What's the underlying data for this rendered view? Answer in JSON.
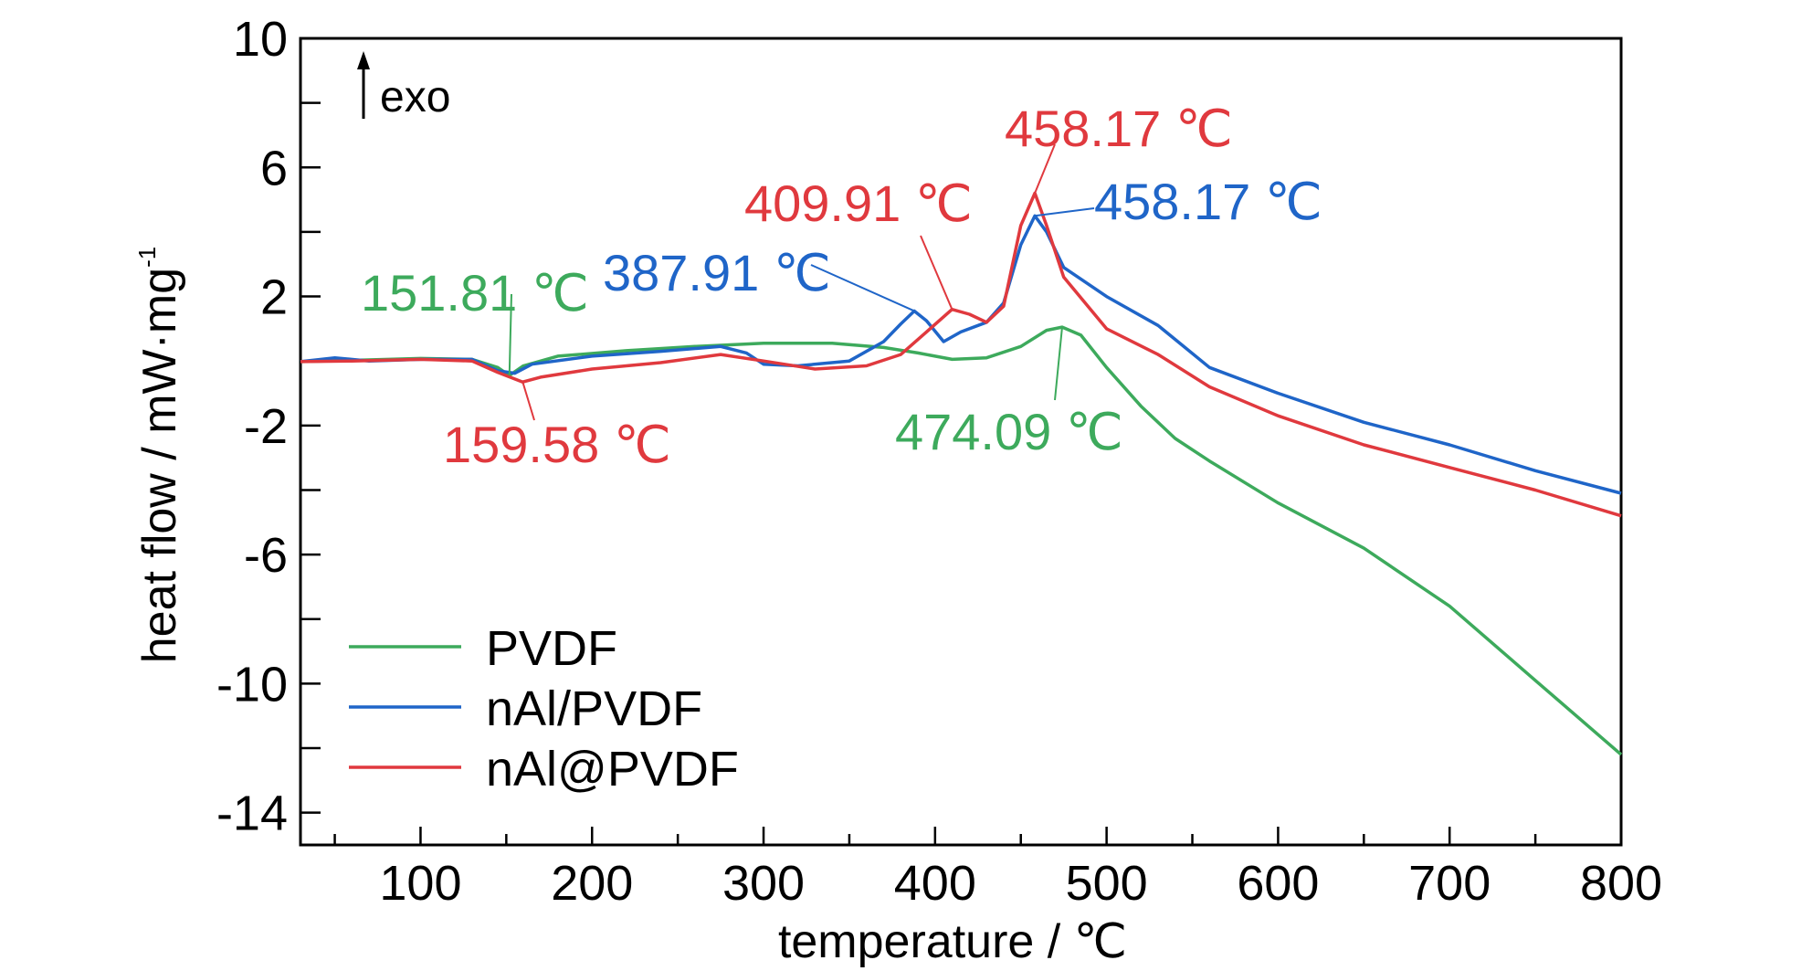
{
  "chart_data": {
    "type": "line",
    "xlabel": "temperature / ℃",
    "ylabel": "heat flow / mW·mg",
    "ylabel_sup": "-1",
    "xlim": [
      30,
      800
    ],
    "ylim": [
      -15,
      10
    ],
    "xticks": [
      100,
      200,
      300,
      400,
      500,
      600,
      700,
      800
    ],
    "yticks": [
      10,
      6,
      2,
      -2,
      -6,
      -10,
      -14
    ],
    "ytick_labels": [
      "10",
      "6",
      "2",
      "-2",
      "-6",
      "-10",
      "-14"
    ],
    "grid": false,
    "legend_position": "bottom-left",
    "exo_label": "exo",
    "series": [
      {
        "name": "PVDF",
        "color": "#3daa5c",
        "points": [
          [
            30,
            -0.02
          ],
          [
            60,
            0.02
          ],
          [
            100,
            0.08
          ],
          [
            130,
            0.05
          ],
          [
            145,
            -0.2
          ],
          [
            151.81,
            -0.45
          ],
          [
            160,
            -0.15
          ],
          [
            180,
            0.15
          ],
          [
            220,
            0.32
          ],
          [
            260,
            0.45
          ],
          [
            300,
            0.55
          ],
          [
            340,
            0.55
          ],
          [
            370,
            0.42
          ],
          [
            390,
            0.25
          ],
          [
            410,
            0.05
          ],
          [
            430,
            0.1
          ],
          [
            450,
            0.45
          ],
          [
            465,
            0.95
          ],
          [
            474.09,
            1.05
          ],
          [
            485,
            0.8
          ],
          [
            500,
            -0.2
          ],
          [
            520,
            -1.4
          ],
          [
            540,
            -2.4
          ],
          [
            560,
            -3.1
          ],
          [
            600,
            -4.4
          ],
          [
            650,
            -5.8
          ],
          [
            700,
            -7.6
          ],
          [
            750,
            -9.9
          ],
          [
            800,
            -12.2
          ]
        ]
      },
      {
        "name": "nAl/PVDF",
        "color": "#1f65c8",
        "points": [
          [
            30,
            -0.02
          ],
          [
            50,
            0.1
          ],
          [
            70,
            0.0
          ],
          [
            100,
            0.05
          ],
          [
            130,
            0.05
          ],
          [
            145,
            -0.3
          ],
          [
            155,
            -0.38
          ],
          [
            165,
            -0.1
          ],
          [
            200,
            0.15
          ],
          [
            240,
            0.3
          ],
          [
            275,
            0.45
          ],
          [
            290,
            0.25
          ],
          [
            300,
            -0.1
          ],
          [
            320,
            -0.15
          ],
          [
            350,
            0.0
          ],
          [
            370,
            0.6
          ],
          [
            380,
            1.15
          ],
          [
            387.91,
            1.55
          ],
          [
            395,
            1.25
          ],
          [
            405,
            0.6
          ],
          [
            415,
            0.9
          ],
          [
            430,
            1.2
          ],
          [
            440,
            1.8
          ],
          [
            450,
            3.6
          ],
          [
            458.17,
            4.5
          ],
          [
            465,
            4.0
          ],
          [
            475,
            2.9
          ],
          [
            500,
            2.0
          ],
          [
            530,
            1.1
          ],
          [
            560,
            -0.2
          ],
          [
            600,
            -1.0
          ],
          [
            650,
            -1.9
          ],
          [
            700,
            -2.6
          ],
          [
            750,
            -3.4
          ],
          [
            800,
            -4.1
          ]
        ]
      },
      {
        "name": "nAl@PVDF",
        "color": "#e0393e",
        "points": [
          [
            30,
            -0.02
          ],
          [
            60,
            0.0
          ],
          [
            100,
            0.05
          ],
          [
            130,
            0.0
          ],
          [
            145,
            -0.35
          ],
          [
            159.58,
            -0.65
          ],
          [
            170,
            -0.5
          ],
          [
            200,
            -0.25
          ],
          [
            240,
            -0.05
          ],
          [
            275,
            0.2
          ],
          [
            300,
            0.0
          ],
          [
            330,
            -0.25
          ],
          [
            360,
            -0.15
          ],
          [
            380,
            0.2
          ],
          [
            395,
            0.9
          ],
          [
            409.91,
            1.6
          ],
          [
            420,
            1.45
          ],
          [
            430,
            1.2
          ],
          [
            440,
            1.7
          ],
          [
            450,
            4.2
          ],
          [
            458.17,
            5.2
          ],
          [
            465,
            4.2
          ],
          [
            475,
            2.6
          ],
          [
            500,
            1.0
          ],
          [
            530,
            0.2
          ],
          [
            560,
            -0.8
          ],
          [
            600,
            -1.7
          ],
          [
            650,
            -2.6
          ],
          [
            700,
            -3.3
          ],
          [
            750,
            -4.0
          ],
          [
            800,
            -4.8
          ]
        ]
      }
    ],
    "annotations": [
      {
        "text": "151.81 ℃",
        "color": "#3daa5c",
        "x": 151.81,
        "y": -0.45
      },
      {
        "text": "159.58 ℃",
        "color": "#e0393e",
        "x": 159.58,
        "y": -0.65
      },
      {
        "text": "387.91 ℃",
        "color": "#1f65c8",
        "x": 387.91,
        "y": 1.55
      },
      {
        "text": "409.91 ℃",
        "color": "#e0393e",
        "x": 409.91,
        "y": 1.6
      },
      {
        "text": "458.17 ℃",
        "color": "#e0393e",
        "x": 458.17,
        "y": 5.2
      },
      {
        "text": "458.17 ℃",
        "color": "#1f65c8",
        "x": 458.17,
        "y": 4.5
      },
      {
        "text": "474.09 ℃",
        "color": "#3daa5c",
        "x": 474.09,
        "y": 1.05
      }
    ]
  }
}
